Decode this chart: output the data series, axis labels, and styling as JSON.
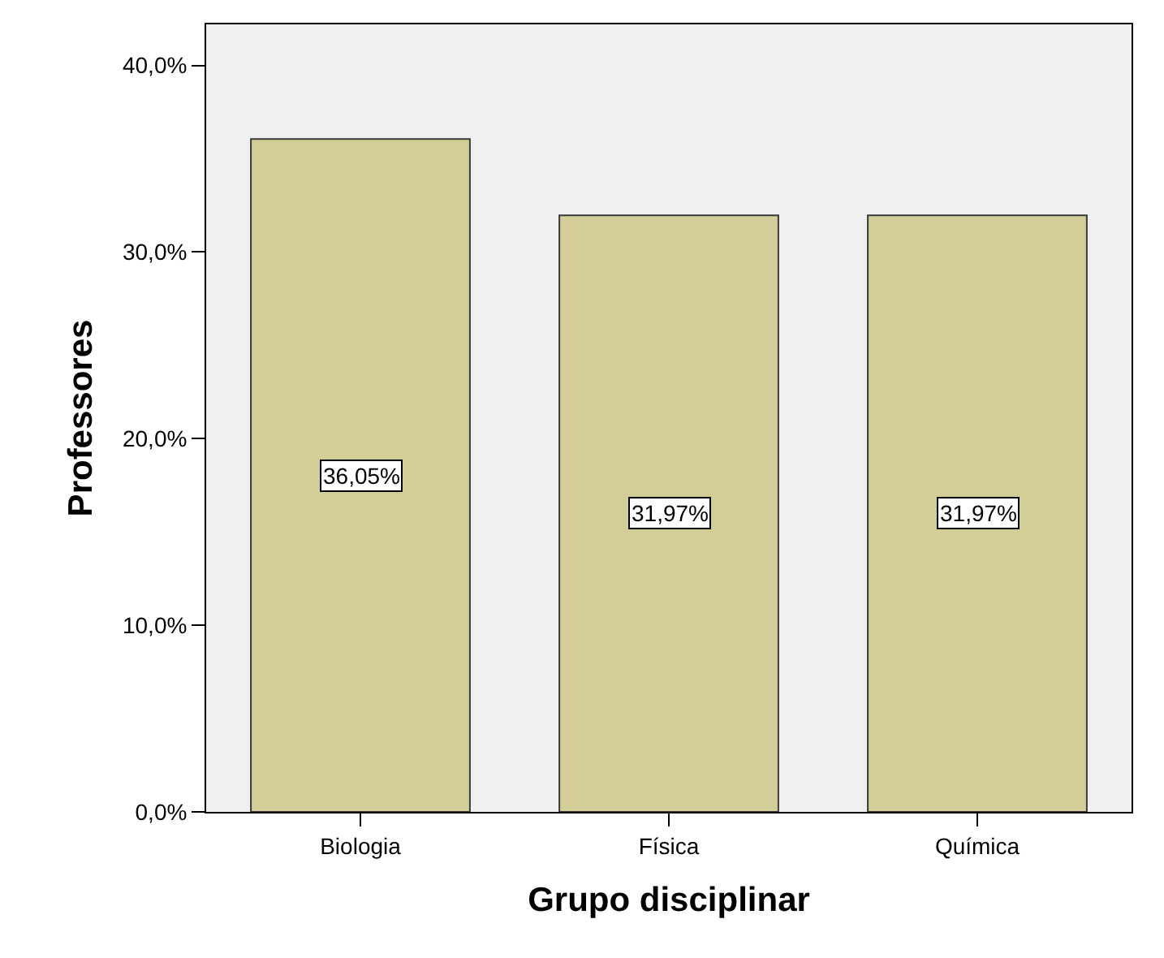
{
  "chart_data": {
    "type": "bar",
    "xlabel": "Grupo disciplinar",
    "ylabel": "Professores",
    "categories": [
      "Biologia",
      "Física",
      "Química"
    ],
    "values": [
      36.05,
      31.97,
      31.97
    ],
    "value_labels": [
      "36,05%",
      "31,97%",
      "31,97%"
    ],
    "color": "#d3ce97",
    "ylim": [
      0,
      42.2
    ],
    "yticks": [
      {
        "value": 0,
        "label": "0,0%"
      },
      {
        "value": 10,
        "label": "10,0%"
      },
      {
        "value": 20,
        "label": "20,0%"
      },
      {
        "value": 30,
        "label": "30,0%"
      },
      {
        "value": 40,
        "label": "40,0%"
      }
    ],
    "grid": false,
    "legend": false
  }
}
